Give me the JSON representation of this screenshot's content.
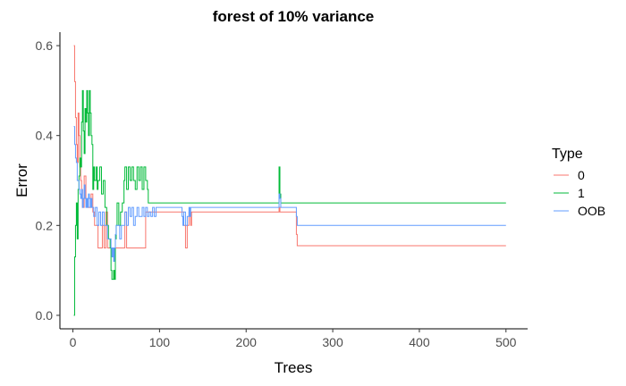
{
  "chart_data": {
    "type": "line",
    "title": "forest of 10% variance",
    "xlabel": "Trees",
    "ylabel": "Error",
    "xlim": [
      -15,
      525
    ],
    "ylim": [
      -0.03,
      0.63
    ],
    "x_ticks": [
      0,
      100,
      200,
      300,
      400,
      500
    ],
    "x_tick_labels": [
      "0",
      "100",
      "200",
      "300",
      "400",
      "500"
    ],
    "y_ticks": [
      0.0,
      0.2,
      0.4,
      0.6
    ],
    "y_tick_labels": [
      "0.0",
      "0.2",
      "0.4",
      "0.6"
    ],
    "grid": false,
    "legend": {
      "title": "Type",
      "placement": "right"
    },
    "series": [
      {
        "name": "0",
        "color": "#F8766D",
        "points": [
          [
            1,
            0.6
          ],
          [
            2,
            0.52
          ],
          [
            3,
            0.44
          ],
          [
            4,
            0.38
          ],
          [
            5,
            0.34
          ],
          [
            6,
            0.45
          ],
          [
            7,
            0.4
          ],
          [
            8,
            0.33
          ],
          [
            9,
            0.3
          ],
          [
            10,
            0.28
          ],
          [
            11,
            0.24
          ],
          [
            13,
            0.31
          ],
          [
            15,
            0.25
          ],
          [
            17,
            0.24
          ],
          [
            19,
            0.24
          ],
          [
            21,
            0.27
          ],
          [
            23,
            0.23
          ],
          [
            25,
            0.2
          ],
          [
            27,
            0.2
          ],
          [
            29,
            0.15
          ],
          [
            30,
            0.15
          ],
          [
            32,
            0.15
          ],
          [
            34,
            0.2
          ],
          [
            36,
            0.15
          ],
          [
            38,
            0.23
          ],
          [
            40,
            0.15
          ],
          [
            44,
            0.15
          ],
          [
            48,
            0.15
          ],
          [
            52,
            0.15
          ],
          [
            56,
            0.15
          ],
          [
            60,
            0.23
          ],
          [
            62,
            0.15
          ],
          [
            64,
            0.15
          ],
          [
            70,
            0.15
          ],
          [
            76,
            0.15
          ],
          [
            82,
            0.15
          ],
          [
            84,
            0.23
          ],
          [
            86,
            0.23
          ],
          [
            88,
            0.23
          ],
          [
            92,
            0.23
          ],
          [
            96,
            0.23
          ],
          [
            100,
            0.23
          ],
          [
            126,
            0.23
          ],
          [
            128,
            0.2
          ],
          [
            130,
            0.15
          ],
          [
            132,
            0.2
          ],
          [
            134,
            0.23
          ],
          [
            136,
            0.2
          ],
          [
            137,
            0.23
          ],
          [
            237,
            0.23
          ],
          [
            238,
            0.24
          ],
          [
            239,
            0.23
          ],
          [
            257,
            0.23
          ],
          [
            258,
            0.18
          ],
          [
            259,
            0.155
          ],
          [
            500,
            0.155
          ]
        ]
      },
      {
        "name": "1",
        "color": "#00BA38",
        "points": [
          [
            1,
            0.0
          ],
          [
            2,
            0.13
          ],
          [
            3,
            0.2
          ],
          [
            4,
            0.25
          ],
          [
            5,
            0.17
          ],
          [
            6,
            0.28
          ],
          [
            7,
            0.31
          ],
          [
            8,
            0.35
          ],
          [
            9,
            0.33
          ],
          [
            10,
            0.43
          ],
          [
            11,
            0.5
          ],
          [
            12,
            0.41
          ],
          [
            13,
            0.36
          ],
          [
            14,
            0.46
          ],
          [
            15,
            0.43
          ],
          [
            16,
            0.5
          ],
          [
            17,
            0.45
          ],
          [
            18,
            0.4
          ],
          [
            19,
            0.5
          ],
          [
            20,
            0.45
          ],
          [
            21,
            0.4
          ],
          [
            22,
            0.38
          ],
          [
            23,
            0.28
          ],
          [
            24,
            0.33
          ],
          [
            25,
            0.3
          ],
          [
            27,
            0.33
          ],
          [
            28,
            0.28
          ],
          [
            29,
            0.3
          ],
          [
            31,
            0.33
          ],
          [
            33,
            0.27
          ],
          [
            35,
            0.3
          ],
          [
            37,
            0.24
          ],
          [
            39,
            0.2
          ],
          [
            41,
            0.17
          ],
          [
            43,
            0.15
          ],
          [
            44,
            0.1
          ],
          [
            45,
            0.08
          ],
          [
            47,
            0.1
          ],
          [
            48,
            0.08
          ],
          [
            49,
            0.17
          ],
          [
            50,
            0.2
          ],
          [
            51,
            0.25
          ],
          [
            53,
            0.2
          ],
          [
            55,
            0.23
          ],
          [
            57,
            0.25
          ],
          [
            59,
            0.3
          ],
          [
            60,
            0.33
          ],
          [
            62,
            0.28
          ],
          [
            64,
            0.33
          ],
          [
            66,
            0.3
          ],
          [
            68,
            0.33
          ],
          [
            70,
            0.3
          ],
          [
            72,
            0.28
          ],
          [
            74,
            0.33
          ],
          [
            76,
            0.3
          ],
          [
            78,
            0.33
          ],
          [
            80,
            0.28
          ],
          [
            82,
            0.33
          ],
          [
            84,
            0.3
          ],
          [
            86,
            0.28
          ],
          [
            87,
            0.25
          ],
          [
            88,
            0.25
          ],
          [
            237,
            0.25
          ],
          [
            238,
            0.33
          ],
          [
            239,
            0.27
          ],
          [
            240,
            0.25
          ],
          [
            500,
            0.25
          ]
        ]
      },
      {
        "name": "OOB",
        "color": "#619CFF",
        "points": [
          [
            1,
            0.42
          ],
          [
            2,
            0.38
          ],
          [
            3,
            0.35
          ],
          [
            4,
            0.34
          ],
          [
            5,
            0.3
          ],
          [
            6,
            0.3
          ],
          [
            7,
            0.28
          ],
          [
            8,
            0.27
          ],
          [
            9,
            0.26
          ],
          [
            10,
            0.28
          ],
          [
            11,
            0.24
          ],
          [
            12,
            0.26
          ],
          [
            13,
            0.29
          ],
          [
            14,
            0.26
          ],
          [
            15,
            0.24
          ],
          [
            16,
            0.26
          ],
          [
            17,
            0.24
          ],
          [
            18,
            0.27
          ],
          [
            19,
            0.26
          ],
          [
            20,
            0.24
          ],
          [
            21,
            0.26
          ],
          [
            22,
            0.24
          ],
          [
            24,
            0.22
          ],
          [
            26,
            0.24
          ],
          [
            28,
            0.2
          ],
          [
            30,
            0.23
          ],
          [
            32,
            0.2
          ],
          [
            34,
            0.23
          ],
          [
            36,
            0.2
          ],
          [
            38,
            0.2
          ],
          [
            40,
            0.17
          ],
          [
            42,
            0.17
          ],
          [
            44,
            0.15
          ],
          [
            45,
            0.13
          ],
          [
            46,
            0.15
          ],
          [
            47,
            0.12
          ],
          [
            48,
            0.15
          ],
          [
            49,
            0.18
          ],
          [
            50,
            0.2
          ],
          [
            52,
            0.2
          ],
          [
            54,
            0.17
          ],
          [
            56,
            0.2
          ],
          [
            58,
            0.2
          ],
          [
            60,
            0.23
          ],
          [
            62,
            0.2
          ],
          [
            64,
            0.24
          ],
          [
            66,
            0.22
          ],
          [
            68,
            0.24
          ],
          [
            70,
            0.2
          ],
          [
            72,
            0.22
          ],
          [
            74,
            0.24
          ],
          [
            76,
            0.22
          ],
          [
            78,
            0.22
          ],
          [
            80,
            0.24
          ],
          [
            82,
            0.22
          ],
          [
            84,
            0.24
          ],
          [
            86,
            0.22
          ],
          [
            88,
            0.23
          ],
          [
            90,
            0.22
          ],
          [
            92,
            0.24
          ],
          [
            94,
            0.22
          ],
          [
            96,
            0.24
          ],
          [
            98,
            0.24
          ],
          [
            125,
            0.24
          ],
          [
            126,
            0.22
          ],
          [
            127,
            0.2
          ],
          [
            128,
            0.23
          ],
          [
            130,
            0.2
          ],
          [
            132,
            0.22
          ],
          [
            134,
            0.24
          ],
          [
            135,
            0.22
          ],
          [
            136,
            0.24
          ],
          [
            237,
            0.24
          ],
          [
            238,
            0.27
          ],
          [
            239,
            0.26
          ],
          [
            240,
            0.24
          ],
          [
            257,
            0.24
          ],
          [
            258,
            0.22
          ],
          [
            259,
            0.2
          ],
          [
            500,
            0.2
          ]
        ]
      }
    ]
  }
}
